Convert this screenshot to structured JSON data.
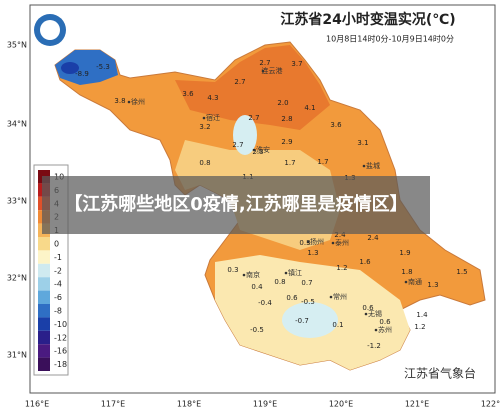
{
  "header": {
    "title": "江苏省24小时变温实况(℃)",
    "subtitle": "10月8日14时0分-10月9日14时0分"
  },
  "axes": {
    "lat": [
      "35°N",
      "34°N",
      "33°N",
      "32°N",
      "31°N"
    ],
    "lon": [
      "116°E",
      "117°E",
      "118°E",
      "119°E",
      "120°E",
      "121°E",
      "122°E"
    ]
  },
  "legend": {
    "labels": [
      10,
      6,
      4,
      2,
      1,
      0,
      -1,
      -2,
      -4,
      -6,
      -8,
      -10,
      -12,
      -16,
      -18
    ],
    "colors": [
      "#7a0a12",
      "#b81d1d",
      "#e0502a",
      "#f08a36",
      "#f5b45a",
      "#f8d98a",
      "#fdf4c8",
      "#cfeaf0",
      "#9dd0e8",
      "#5fa8dc",
      "#2f6fc4",
      "#1a3fa8",
      "#2a1f8a",
      "#4a1a80",
      "#3a0f5a"
    ]
  },
  "cities": [
    "徐州",
    "连云港",
    "宿迁",
    "淮安",
    "盐城",
    "扬州",
    "泰州",
    "南通",
    "南京",
    "镇江",
    "常州",
    "无锡",
    "苏州"
  ],
  "stations": [
    "-8.9",
    "-5.3",
    "3.8",
    "3.6",
    "4.3",
    "2.7",
    "2.7",
    "3.7",
    "3.2",
    "2.0",
    "4.1",
    "2.7",
    "2.8",
    "3.6",
    "2.7",
    "2.3",
    "2.9",
    "3.1",
    "0.8",
    "1.7",
    "1.7",
    "1.1",
    "1.3",
    "2.4",
    "2.4",
    "1.9",
    "1.8",
    "1.3",
    "1.5",
    "0.3",
    "0.4",
    "0.8",
    "0.7",
    "1.2",
    "1.6",
    "-0.4",
    "0.6",
    "-0.5",
    "0.6",
    "0.6",
    "1.2",
    "-0.5",
    "-0.7",
    "0.1",
    "-1.2",
    "1.4",
    "1.3",
    "0.3"
  ],
  "overlay": "【江苏哪些地区0疫情,江苏哪里是疫情区】",
  "source": "江苏省气象台"
}
